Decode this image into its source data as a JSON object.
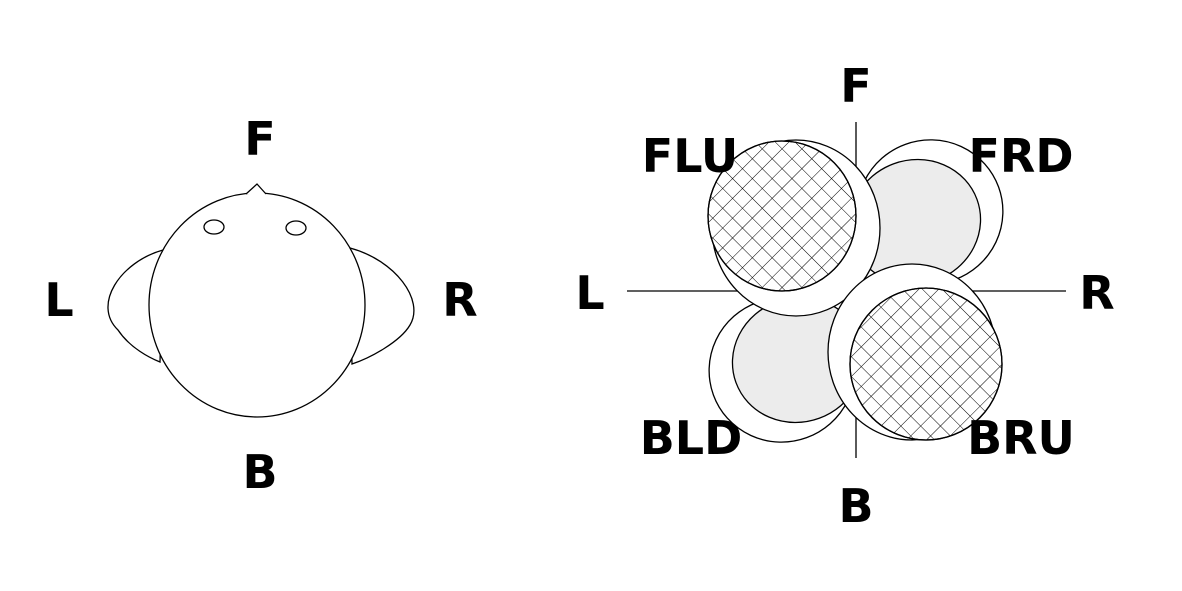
{
  "left_figure": {
    "labels": {
      "front": "F",
      "back": "B",
      "left": "L",
      "right": "R"
    }
  },
  "right_figure": {
    "axis_labels": {
      "front": "F",
      "back": "B",
      "left": "L",
      "right": "R"
    },
    "regions": {
      "front_left_up": "FLU",
      "front_right_down": "FRD",
      "back_left_down": "BLD",
      "back_right_up": "BRU"
    },
    "colors": {
      "shaded_fill": "#ececec",
      "hatch": "#000000"
    }
  }
}
